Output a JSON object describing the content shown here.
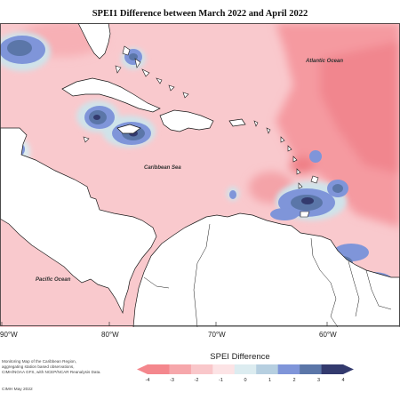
{
  "title": "SPEI1 Difference between March 2022 and April 2022",
  "map_labels": {
    "atlantic": "Atlantic Ocean",
    "caribbean": "Caribbean Sea",
    "pacific": "Pacific Ocean"
  },
  "longitude_labels": [
    "90°W",
    "80°W",
    "70°W",
    "60°W"
  ],
  "legend": {
    "title": "SPEI Difference",
    "ticks": [
      "-4",
      "-3",
      "-2",
      "-1",
      "0",
      "1",
      "2",
      "3",
      "4"
    ],
    "colors": [
      "#f4878d",
      "#f6a7ab",
      "#f9c7ca",
      "#fce3e5",
      "#dcecf0",
      "#b6cfe0",
      "#7f95d9",
      "#5b76a8",
      "#333a6e"
    ]
  },
  "credits": [
    "Monitoring Map of the Caribbean Region,",
    "aggregating station based observations,",
    "CIMH/NOAA GFS, with NCEP/NCAR Reanalysis Data."
  ],
  "stamp": "CIMH May 2022",
  "colors": {
    "ocean_pink": "#f9c9cd",
    "deep_red": "#f28c92",
    "land": "#ffffff",
    "coast": "#1a1a1a"
  }
}
